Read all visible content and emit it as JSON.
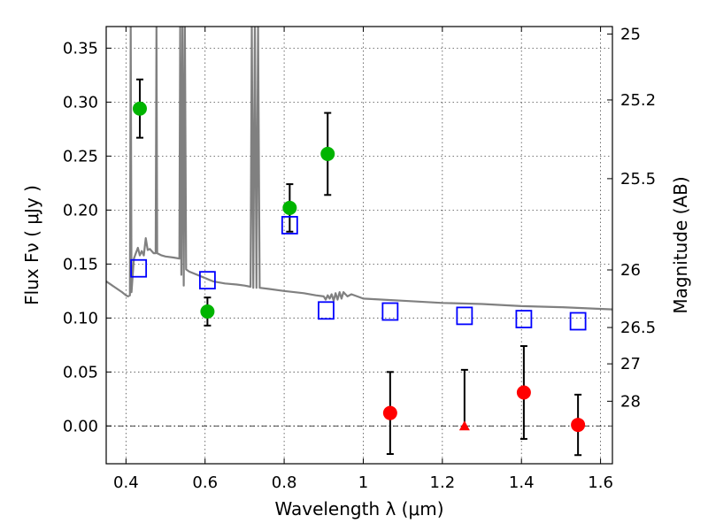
{
  "chart_data": {
    "type": "scatter",
    "xlabel": "Wavelength  λ (μm)",
    "ylabel": "Flux  Fν  ( μJy )",
    "y2label": "Magnitude (AB)",
    "xlim": [
      0.35,
      1.63
    ],
    "ylim": [
      -0.035,
      0.37
    ],
    "grid": true,
    "x_ticks": [
      {
        "value": 0.4,
        "label": "0.4"
      },
      {
        "value": 0.6,
        "label": "0.6"
      },
      {
        "value": 0.8,
        "label": "0.8"
      },
      {
        "value": 1.0,
        "label": "1"
      },
      {
        "value": 1.2,
        "label": "1.2"
      },
      {
        "value": 1.4,
        "label": "1.4"
      },
      {
        "value": 1.6,
        "label": "1.6"
      }
    ],
    "y_ticks": [
      {
        "value": 0.0,
        "label": "0.00"
      },
      {
        "value": 0.05,
        "label": "0.05"
      },
      {
        "value": 0.1,
        "label": "0.10"
      },
      {
        "value": 0.15,
        "label": "0.15"
      },
      {
        "value": 0.2,
        "label": "0.20"
      },
      {
        "value": 0.25,
        "label": "0.25"
      },
      {
        "value": 0.3,
        "label": "0.30"
      },
      {
        "value": 0.35,
        "label": "0.35"
      }
    ],
    "y2_ticks": [
      {
        "value": 25,
        "label": "25"
      },
      {
        "value": 25.2,
        "label": "25.2"
      },
      {
        "value": 25.5,
        "label": "25.5"
      },
      {
        "value": 26,
        "label": "26"
      },
      {
        "value": 26.5,
        "label": "26.5"
      },
      {
        "value": 27,
        "label": "27"
      },
      {
        "value": 28,
        "label": "28"
      }
    ],
    "model_spectrum": {
      "color": "#808080",
      "points": [
        [
          0.35,
          0.134
        ],
        [
          0.37,
          0.129
        ],
        [
          0.39,
          0.124
        ],
        [
          0.4,
          0.121
        ],
        [
          0.405,
          0.12
        ],
        [
          0.41,
          0.121
        ],
        [
          0.412,
          0.37
        ],
        [
          0.414,
          0.124
        ],
        [
          0.42,
          0.155
        ],
        [
          0.425,
          0.16
        ],
        [
          0.43,
          0.165
        ],
        [
          0.435,
          0.158
        ],
        [
          0.44,
          0.162
        ],
        [
          0.445,
          0.158
        ],
        [
          0.45,
          0.174
        ],
        [
          0.455,
          0.163
        ],
        [
          0.46,
          0.164
        ],
        [
          0.47,
          0.16
        ],
        [
          0.475,
          0.16
        ],
        [
          0.477,
          0.37
        ],
        [
          0.479,
          0.16
        ],
        [
          0.49,
          0.158
        ],
        [
          0.5,
          0.157
        ],
        [
          0.52,
          0.156
        ],
        [
          0.535,
          0.155
        ],
        [
          0.537,
          0.37
        ],
        [
          0.54,
          0.14
        ],
        [
          0.543,
          0.37
        ],
        [
          0.546,
          0.13
        ],
        [
          0.549,
          0.37
        ],
        [
          0.552,
          0.145
        ],
        [
          0.56,
          0.143
        ],
        [
          0.58,
          0.14
        ],
        [
          0.6,
          0.137
        ],
        [
          0.62,
          0.134
        ],
        [
          0.65,
          0.132
        ],
        [
          0.68,
          0.131
        ],
        [
          0.7,
          0.13
        ],
        [
          0.715,
          0.129
        ],
        [
          0.718,
          0.37
        ],
        [
          0.722,
          0.128
        ],
        [
          0.726,
          0.37
        ],
        [
          0.73,
          0.128
        ],
        [
          0.734,
          0.37
        ],
        [
          0.738,
          0.128
        ],
        [
          0.76,
          0.127
        ],
        [
          0.8,
          0.125
        ],
        [
          0.85,
          0.123
        ],
        [
          0.88,
          0.121
        ],
        [
          0.9,
          0.12
        ],
        [
          0.905,
          0.117
        ],
        [
          0.91,
          0.121
        ],
        [
          0.915,
          0.118
        ],
        [
          0.92,
          0.122
        ],
        [
          0.925,
          0.116
        ],
        [
          0.93,
          0.123
        ],
        [
          0.935,
          0.117
        ],
        [
          0.94,
          0.124
        ],
        [
          0.945,
          0.118
        ],
        [
          0.95,
          0.124
        ],
        [
          0.96,
          0.12
        ],
        [
          0.97,
          0.122
        ],
        [
          1.0,
          0.118
        ],
        [
          1.05,
          0.117
        ],
        [
          1.1,
          0.116
        ],
        [
          1.2,
          0.114
        ],
        [
          1.3,
          0.113
        ],
        [
          1.4,
          0.111
        ],
        [
          1.5,
          0.11
        ],
        [
          1.63,
          0.108
        ]
      ]
    },
    "series": [
      {
        "marker": "circle",
        "color": "#00b400",
        "points": [
          {
            "x": 0.435,
            "y": 0.294,
            "err": 0.027
          },
          {
            "x": 0.606,
            "y": 0.106,
            "err": 0.013
          },
          {
            "x": 0.814,
            "y": 0.202,
            "err": 0.022
          },
          {
            "x": 0.91,
            "y": 0.252,
            "err": 0.038
          }
        ]
      },
      {
        "marker": "circle",
        "color": "#ff0000",
        "points": [
          {
            "x": 1.068,
            "y": 0.012,
            "err": 0.038
          },
          {
            "x": 1.406,
            "y": 0.031,
            "err": 0.043
          },
          {
            "x": 1.543,
            "y": 0.001,
            "err": 0.028
          }
        ]
      },
      {
        "marker": "triangle",
        "color": "#ff0000",
        "points": [
          {
            "x": 1.256,
            "y": 0.0,
            "err_up": 0.052,
            "err_down": 0.0
          }
        ]
      },
      {
        "marker": "square-open",
        "color": "#0000ff",
        "points": [
          {
            "x": 0.432,
            "y": 0.146
          },
          {
            "x": 0.606,
            "y": 0.135
          },
          {
            "x": 0.814,
            "y": 0.186
          },
          {
            "x": 0.906,
            "y": 0.107
          },
          {
            "x": 1.068,
            "y": 0.106
          },
          {
            "x": 1.256,
            "y": 0.102
          },
          {
            "x": 1.406,
            "y": 0.099
          },
          {
            "x": 1.543,
            "y": 0.097
          }
        ]
      }
    ]
  }
}
